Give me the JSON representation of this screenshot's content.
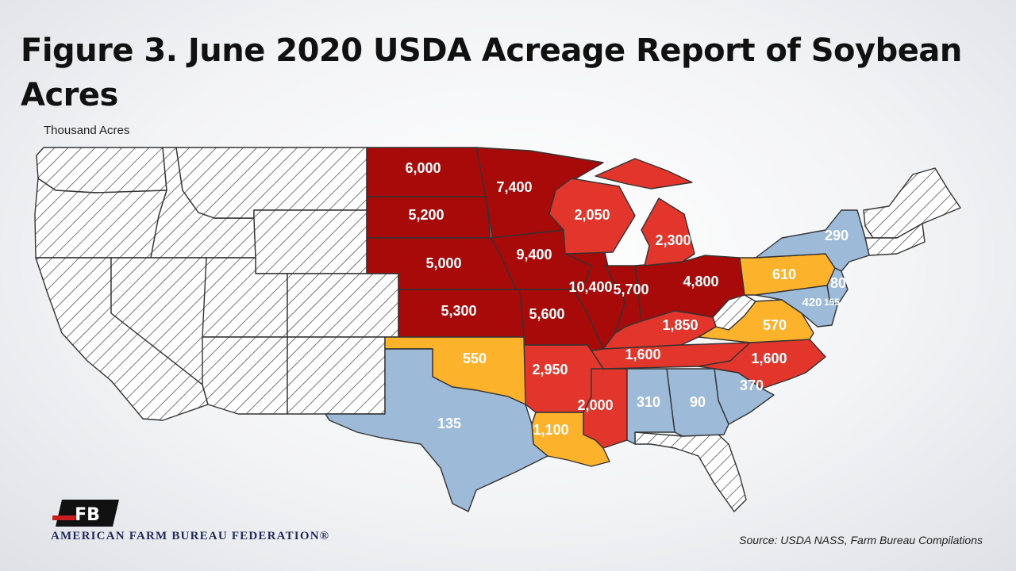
{
  "title": "Figure 3. June 2020 USDA Acreage Report of Soybean Acres",
  "units": "Thousand Acres",
  "source": "Source: USDA NASS, Farm Bureau Compilations",
  "organization": "AMERICAN FARM BUREAU FEDERATION®",
  "logo_text": "FB",
  "colors": {
    "dark_red": "#a80a0a",
    "red": "#e2352b",
    "orange": "#fcb22b",
    "light_blue": "#9dbad8",
    "no_data": "#ffffff",
    "hatch": "#555555"
  },
  "states": [
    {
      "state": "ND",
      "label": "6,000",
      "class": "dark_red"
    },
    {
      "state": "MN",
      "label": "7,400",
      "class": "dark_red"
    },
    {
      "state": "SD",
      "label": "5,200",
      "class": "dark_red"
    },
    {
      "state": "NE",
      "label": "5,000",
      "class": "dark_red"
    },
    {
      "state": "IA",
      "label": "9,400",
      "class": "dark_red"
    },
    {
      "state": "KS",
      "label": "5,300",
      "class": "dark_red"
    },
    {
      "state": "MO",
      "label": "5,600",
      "class": "dark_red"
    },
    {
      "state": "IL",
      "label": "10,400",
      "class": "dark_red"
    },
    {
      "state": "IN",
      "label": "5,700",
      "class": "dark_red"
    },
    {
      "state": "OH",
      "label": "4,800",
      "class": "dark_red"
    },
    {
      "state": "WI",
      "label": "2,050",
      "class": "red"
    },
    {
      "state": "MI",
      "label": "2,300",
      "class": "red"
    },
    {
      "state": "KY",
      "label": "1,850",
      "class": "red"
    },
    {
      "state": "TN",
      "label": "1,600",
      "class": "red"
    },
    {
      "state": "NC",
      "label": "1,600",
      "class": "red"
    },
    {
      "state": "AR",
      "label": "2,950",
      "class": "red"
    },
    {
      "state": "MS",
      "label": "2,000",
      "class": "red"
    },
    {
      "state": "PA",
      "label": "610",
      "class": "orange"
    },
    {
      "state": "VA",
      "label": "570",
      "class": "orange"
    },
    {
      "state": "OK",
      "label": "550",
      "class": "orange"
    },
    {
      "state": "LA",
      "label": "1,100",
      "class": "orange"
    },
    {
      "state": "NY",
      "label": "290",
      "class": "light_blue"
    },
    {
      "state": "NJ",
      "label": "80",
      "class": "light_blue"
    },
    {
      "state": "MD",
      "label": "420",
      "class": "light_blue"
    },
    {
      "state": "DE",
      "label": "155",
      "class": "light_blue"
    },
    {
      "state": "SC",
      "label": "370",
      "class": "light_blue"
    },
    {
      "state": "GA",
      "label": "90",
      "class": "light_blue"
    },
    {
      "state": "AL",
      "label": "310",
      "class": "light_blue"
    },
    {
      "state": "TX",
      "label": "135",
      "class": "light_blue"
    }
  ]
}
